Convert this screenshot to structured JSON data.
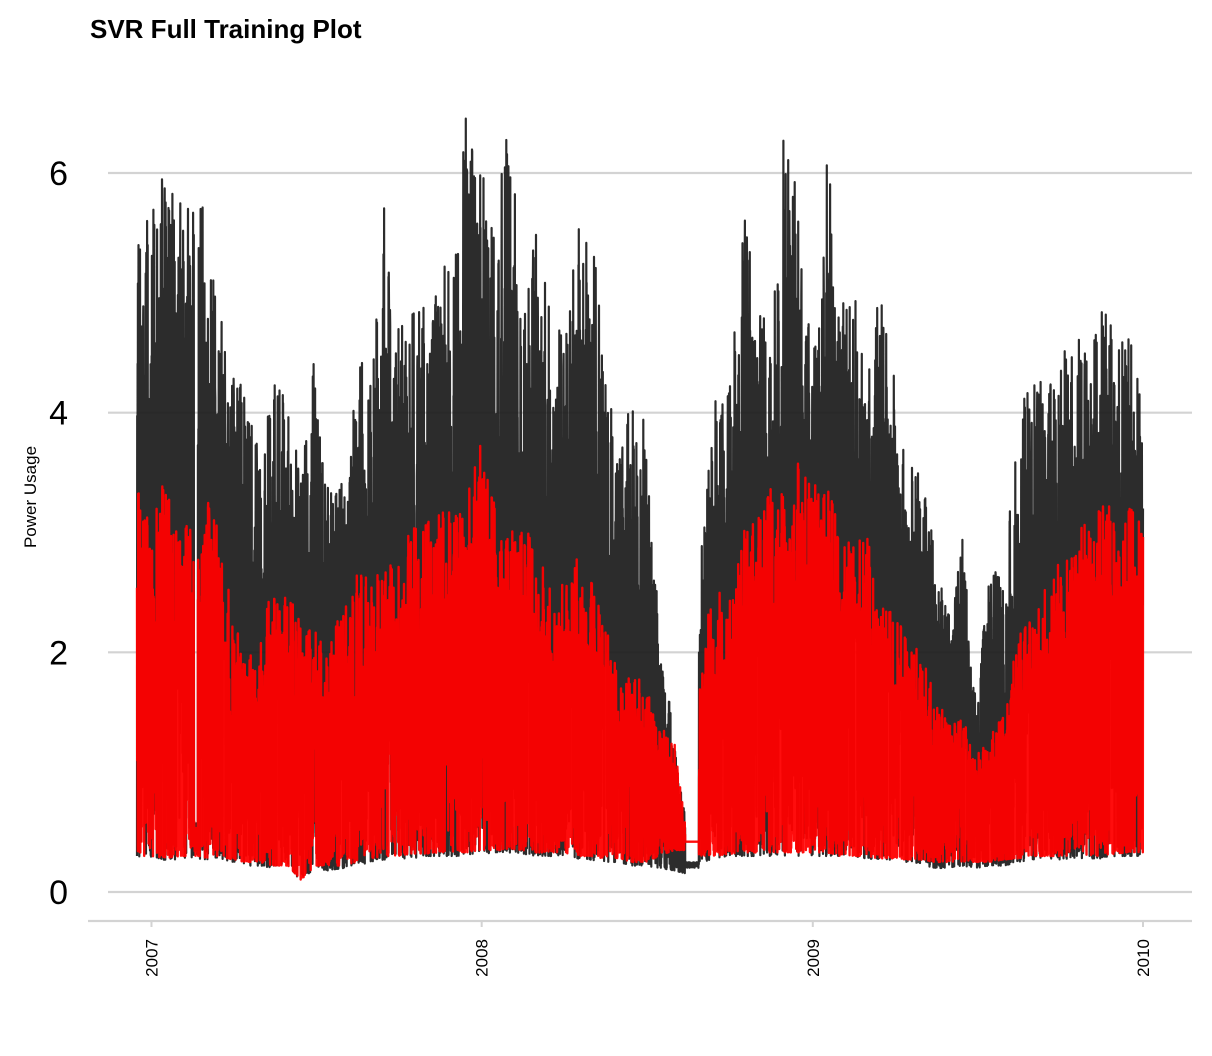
{
  "chart_data": {
    "type": "line",
    "title": "SVR Full Training Plot",
    "xlabel": "",
    "ylabel": "Power Usage",
    "x_ticks": [
      "2007",
      "2008",
      "2009",
      "2010"
    ],
    "y_ticks": [
      0,
      2,
      4,
      6
    ],
    "ylim": [
      -0.25,
      6.8
    ],
    "xlim": [
      "2006-12-16",
      "2010-01-01"
    ],
    "grid": "horizontal-major",
    "legend": "none",
    "series": [
      {
        "color": "#1a1a1a",
        "x": [
          "2006-12-16",
          "2007-01-01",
          "2007-01-15",
          "2007-02-01",
          "2007-02-15",
          "2007-03-01",
          "2007-03-15",
          "2007-04-01",
          "2007-04-15",
          "2007-05-01",
          "2007-05-15",
          "2007-06-01",
          "2007-06-15",
          "2007-07-01",
          "2007-07-15",
          "2007-08-01",
          "2007-08-15",
          "2007-09-01",
          "2007-09-15",
          "2007-10-01",
          "2007-10-15",
          "2007-11-01",
          "2007-11-15",
          "2007-12-01",
          "2007-12-15",
          "2008-01-01",
          "2008-01-15",
          "2008-02-01",
          "2008-02-15",
          "2008-03-01",
          "2008-03-15",
          "2008-04-01",
          "2008-04-15",
          "2008-05-01",
          "2008-05-15",
          "2008-06-01",
          "2008-06-15",
          "2008-07-01",
          "2008-07-15",
          "2008-08-01",
          "2008-08-15",
          "2008-09-01",
          "2008-09-15",
          "2008-10-01",
          "2008-10-15",
          "2008-11-01",
          "2008-11-15",
          "2008-12-01",
          "2008-12-15",
          "2009-01-01",
          "2009-01-15",
          "2009-02-01",
          "2009-02-15",
          "2009-03-01",
          "2009-03-15",
          "2009-04-01",
          "2009-04-15",
          "2009-05-01",
          "2009-05-15",
          "2009-06-01",
          "2009-06-15",
          "2009-07-01",
          "2009-07-15",
          "2009-08-01",
          "2009-08-15",
          "2009-09-01",
          "2009-09-15",
          "2009-10-01",
          "2009-10-15",
          "2009-11-01",
          "2009-11-15",
          "2009-12-01",
          "2009-12-15",
          "2010-01-01"
        ],
        "high": [
          5.55,
          5.8,
          6.1,
          5.8,
          6.38,
          5.65,
          5.15,
          4.7,
          4.1,
          3.7,
          4.45,
          4.05,
          3.5,
          4.6,
          3.4,
          3.45,
          4.65,
          4.2,
          5.75,
          4.8,
          4.85,
          4.9,
          5.2,
          5.25,
          6.5,
          6.35,
          5.65,
          6.5,
          4.9,
          5.65,
          5.05,
          4.6,
          5.65,
          5.7,
          4.45,
          3.8,
          4.1,
          4.0,
          2.3,
          1.3,
          0.5,
          3.0,
          4.1,
          4.2,
          5.75,
          4.95,
          4.65,
          6.6,
          5.9,
          4.3,
          6.55,
          5.0,
          5.25,
          4.15,
          5.05,
          4.3,
          3.85,
          3.5,
          2.9,
          2.3,
          3.05,
          1.5,
          2.8,
          2.7,
          3.9,
          4.45,
          4.15,
          4.5,
          4.6,
          4.8,
          5.1,
          4.7,
          4.7,
          4.2
        ],
        "low": [
          0.3,
          0.28,
          0.27,
          0.27,
          0.28,
          0.27,
          0.28,
          0.25,
          0.22,
          0.22,
          0.2,
          0.2,
          0.1,
          0.2,
          0.18,
          0.2,
          0.22,
          0.25,
          0.27,
          0.28,
          0.28,
          0.3,
          0.3,
          0.3,
          0.3,
          0.32,
          0.32,
          0.33,
          0.32,
          0.3,
          0.3,
          0.3,
          0.28,
          0.27,
          0.25,
          0.25,
          0.22,
          0.22,
          0.2,
          0.18,
          0.15,
          0.25,
          0.28,
          0.3,
          0.3,
          0.3,
          0.3,
          0.3,
          0.3,
          0.3,
          0.3,
          0.3,
          0.3,
          0.28,
          0.27,
          0.27,
          0.25,
          0.22,
          0.2,
          0.2,
          0.22,
          0.2,
          0.22,
          0.22,
          0.25,
          0.27,
          0.27,
          0.27,
          0.28,
          0.28,
          0.28,
          0.3,
          0.3,
          0.3
        ]
      },
      {
        "color": "#ff0000",
        "x": [
          "2006-12-16",
          "2007-01-01",
          "2007-01-15",
          "2007-02-01",
          "2007-02-15",
          "2007-03-01",
          "2007-03-15",
          "2007-04-01",
          "2007-04-15",
          "2007-05-01",
          "2007-05-15",
          "2007-06-01",
          "2007-06-15",
          "2007-07-01",
          "2007-07-15",
          "2007-08-01",
          "2007-08-15",
          "2007-09-01",
          "2007-09-15",
          "2007-10-01",
          "2007-10-15",
          "2007-11-01",
          "2007-11-15",
          "2007-12-01",
          "2007-12-15",
          "2008-01-01",
          "2008-01-15",
          "2008-02-01",
          "2008-02-15",
          "2008-03-01",
          "2008-03-15",
          "2008-04-01",
          "2008-04-15",
          "2008-05-01",
          "2008-05-15",
          "2008-06-01",
          "2008-06-15",
          "2008-07-01",
          "2008-07-15",
          "2008-08-01",
          "2008-08-15",
          "2008-09-01",
          "2008-09-15",
          "2008-10-01",
          "2008-10-15",
          "2008-11-01",
          "2008-11-15",
          "2008-12-01",
          "2008-12-15",
          "2009-01-01",
          "2009-01-15",
          "2009-02-01",
          "2009-02-15",
          "2009-03-01",
          "2009-03-15",
          "2009-04-01",
          "2009-04-15",
          "2009-05-01",
          "2009-05-15",
          "2009-06-01",
          "2009-06-15",
          "2009-07-01",
          "2009-07-15",
          "2009-08-01",
          "2009-08-15",
          "2009-09-01",
          "2009-09-15",
          "2009-10-01",
          "2009-10-15",
          "2009-11-01",
          "2009-11-15",
          "2009-12-01",
          "2009-12-15",
          "2010-01-01"
        ],
        "high": [
          3.5,
          3.0,
          3.55,
          3.0,
          3.1,
          3.35,
          3.1,
          2.35,
          2.0,
          2.1,
          2.6,
          2.45,
          2.35,
          2.2,
          2.1,
          2.4,
          2.65,
          2.65,
          2.65,
          2.9,
          3.05,
          3.1,
          3.2,
          3.3,
          3.3,
          3.85,
          3.3,
          3.0,
          3.1,
          2.9,
          2.6,
          2.7,
          2.8,
          2.6,
          2.3,
          1.8,
          1.85,
          1.7,
          1.4,
          1.25,
          0.45,
          2.3,
          2.5,
          2.5,
          3.0,
          3.1,
          3.4,
          3.45,
          3.6,
          3.4,
          3.5,
          2.95,
          2.9,
          3.05,
          2.4,
          2.35,
          2.1,
          2.0,
          1.7,
          1.4,
          1.45,
          1.2,
          1.3,
          1.5,
          2.2,
          2.35,
          2.6,
          2.75,
          3.0,
          3.1,
          3.2,
          3.3,
          3.35,
          3.05
        ],
        "low": [
          0.3,
          0.3,
          0.28,
          0.3,
          0.3,
          0.28,
          0.3,
          0.27,
          0.25,
          0.25,
          0.22,
          0.22,
          0.1,
          0.22,
          0.22,
          0.22,
          0.25,
          0.28,
          0.3,
          0.3,
          0.32,
          0.32,
          0.33,
          0.33,
          0.33,
          0.35,
          0.35,
          0.35,
          0.35,
          0.33,
          0.33,
          0.33,
          0.3,
          0.3,
          0.28,
          0.28,
          0.25,
          0.25,
          0.3,
          0.35,
          0.35,
          0.3,
          0.3,
          0.32,
          0.32,
          0.33,
          0.33,
          0.33,
          0.33,
          0.33,
          0.33,
          0.3,
          0.3,
          0.3,
          0.28,
          0.28,
          0.27,
          0.27,
          0.25,
          0.25,
          0.25,
          0.25,
          0.25,
          0.27,
          0.28,
          0.3,
          0.3,
          0.3,
          0.3,
          0.3,
          0.3,
          0.32,
          0.33,
          0.33
        ]
      }
    ]
  }
}
